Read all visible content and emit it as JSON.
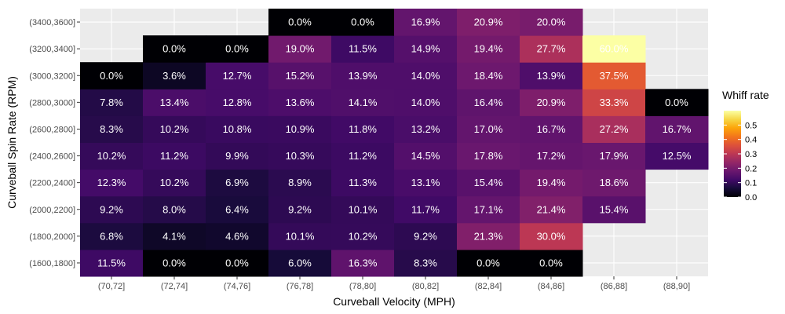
{
  "chart_data": {
    "type": "heatmap",
    "title": "",
    "xlabel": "Curveball Velocity (MPH)",
    "ylabel": "Curveball Spin Rate (RPM)",
    "x_categories": [
      "(70,72]",
      "(72,74]",
      "(74,76]",
      "(76,78]",
      "(78,80]",
      "(80,82]",
      "(82,84]",
      "(84,86]",
      "(86,88]",
      "(88,90]"
    ],
    "y_categories": [
      "(1600,1800]",
      "(1800,2000]",
      "(2000,2200]",
      "(2200,2400]",
      "(2400,2600]",
      "(2600,2800]",
      "(2800,3000]",
      "(3000,3200]",
      "(3200,3400]",
      "(3400,3600]"
    ],
    "values": [
      [
        11.5,
        0.0,
        0.0,
        6.0,
        16.3,
        8.3,
        0.0,
        0.0,
        null,
        null
      ],
      [
        6.8,
        4.1,
        4.6,
        10.1,
        10.2,
        9.2,
        21.3,
        30.0,
        null,
        null
      ],
      [
        9.2,
        8.0,
        6.4,
        9.2,
        10.1,
        11.7,
        17.1,
        21.4,
        15.4,
        null
      ],
      [
        12.3,
        10.2,
        6.9,
        8.9,
        11.3,
        13.1,
        15.4,
        19.4,
        18.6,
        null
      ],
      [
        10.2,
        11.2,
        9.9,
        10.3,
        11.2,
        14.5,
        17.8,
        17.2,
        17.9,
        12.5
      ],
      [
        8.3,
        10.2,
        10.8,
        10.9,
        11.8,
        13.2,
        17.0,
        16.7,
        27.2,
        16.7
      ],
      [
        7.8,
        13.4,
        12.8,
        13.6,
        14.1,
        14.0,
        16.4,
        20.9,
        33.3,
        0.0
      ],
      [
        0.0,
        3.6,
        12.7,
        15.2,
        13.9,
        14.0,
        18.4,
        13.9,
        37.5,
        null
      ],
      [
        null,
        0.0,
        0.0,
        19.0,
        11.5,
        14.9,
        19.4,
        27.7,
        60.0,
        null
      ],
      [
        null,
        null,
        null,
        0.0,
        0.0,
        16.9,
        20.9,
        20.0,
        null,
        null
      ]
    ],
    "value_unit": "%",
    "color_scale": "inferno",
    "legend": {
      "title": "Whiff rate",
      "placement": "right",
      "range": [
        0,
        0.6
      ],
      "ticks": [
        "0.0",
        "0.1",
        "0.2",
        "0.3",
        "0.4",
        "0.5"
      ]
    },
    "grid": true,
    "panel_background": "#ebebeb",
    "gridline_color": "#ffffff"
  }
}
